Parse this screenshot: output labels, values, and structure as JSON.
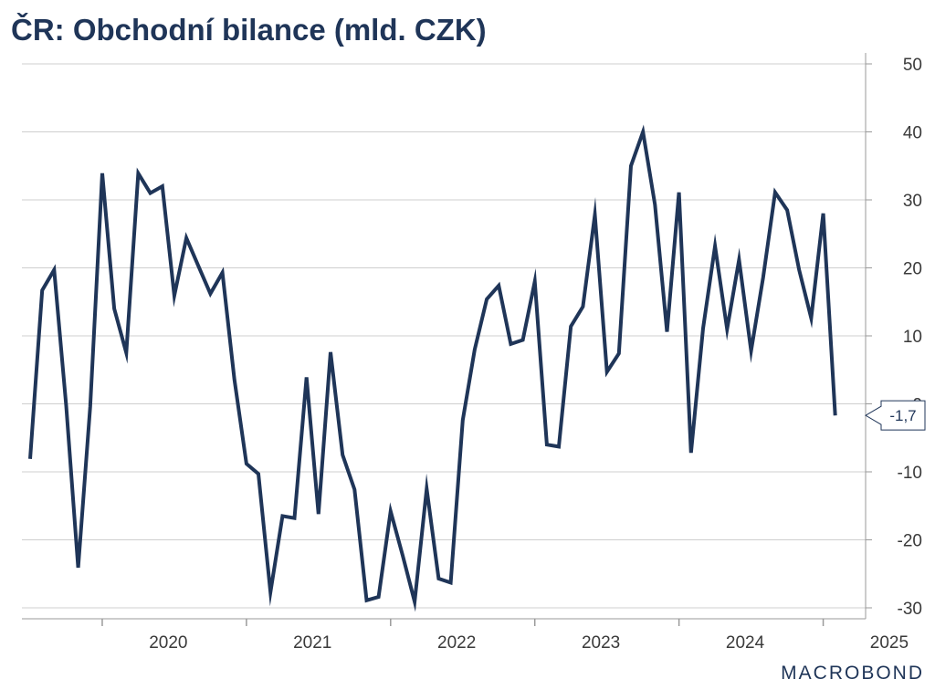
{
  "chart_data": {
    "type": "line",
    "title": "ČR: Obchodní bilance (mld. CZK)",
    "xlabel": "",
    "ylabel": "",
    "ylim": [
      -30,
      50
    ],
    "y_ticks": [
      50,
      40,
      30,
      20,
      10,
      0,
      -10,
      -20,
      -30
    ],
    "y_tick_labels": [
      "50",
      "40",
      "30",
      "20",
      "10",
      "0",
      "-10",
      "-20",
      "-30"
    ],
    "x_tick_labels": [
      "2020",
      "2021",
      "2022",
      "2023",
      "2024",
      "2025"
    ],
    "grid": true,
    "y_axis_position": "right",
    "colors": {
      "line": "#1f3558",
      "grid": "#cfcfcf",
      "axis": "#9a9a9a"
    },
    "start": "2019-07",
    "series": [
      {
        "values": [
          -8.1,
          16.7,
          19.7,
          -0.3,
          -24.1,
          -0.4,
          33.9,
          14.0,
          7.5,
          33.9,
          31.0,
          32.0,
          15.9,
          24.4,
          20.3,
          16.2,
          19.3,
          3.6,
          -8.8,
          -10.3,
          -27.7,
          -16.5,
          -16.8,
          3.9,
          -16.2,
          7.6,
          -7.5,
          -12.6,
          -28.9,
          -28.4,
          -15.8,
          -22.3,
          -29.1,
          -12.5,
          -25.7,
          -26.3,
          -2.4,
          8.0,
          15.4,
          17.4,
          8.8,
          9.4,
          18.0,
          -6.0,
          -6.3,
          11.4,
          14.3,
          27.8,
          4.7,
          7.4,
          35.0,
          40.0,
          29.3,
          10.6,
          31.1,
          -7.2,
          11.1,
          23.2,
          11.0,
          21.2,
          7.8,
          18.6,
          31.1,
          28.5,
          19.7,
          12.6,
          28.0,
          -1.7
        ]
      }
    ],
    "last_value_label": "-1,7"
  },
  "branding": {
    "logo_text": "MACROBOND"
  }
}
